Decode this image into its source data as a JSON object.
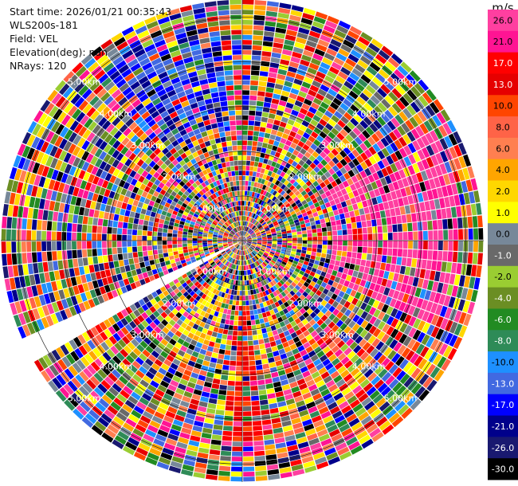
{
  "header": {
    "start_time": "Start time: 2026/01/21 00:35:43",
    "instrument": "WLS200s-181",
    "field": "Field: VEL",
    "elevation": "Elevation(deg): nan",
    "nrays": "NRays: 120"
  },
  "colorbar": {
    "unit": "m/s",
    "levels": [
      {
        "label": "26.0",
        "color": "#ff3fa0"
      },
      {
        "label": "21.0",
        "color": "#ff1493"
      },
      {
        "label": "17.0",
        "color": "#ff0000"
      },
      {
        "label": "13.0",
        "color": "#e60000"
      },
      {
        "label": "10.0",
        "color": "#ff4500"
      },
      {
        "label": "8.0",
        "color": "#ff6347"
      },
      {
        "label": "6.0",
        "color": "#ff7f50"
      },
      {
        "label": "4.0",
        "color": "#ffa500"
      },
      {
        "label": "2.0",
        "color": "#ffd700"
      },
      {
        "label": "1.0",
        "color": "#ffff00"
      },
      {
        "label": "0.0",
        "color": "#778899"
      },
      {
        "label": "-1.0",
        "color": "#696969"
      },
      {
        "label": "-2.0",
        "color": "#9acd32"
      },
      {
        "label": "-4.0",
        "color": "#6b8e23"
      },
      {
        "label": "-6.0",
        "color": "#228b22"
      },
      {
        "label": "-8.0",
        "color": "#2e8b57"
      },
      {
        "label": "-10.0",
        "color": "#1e90ff"
      },
      {
        "label": "-13.0",
        "color": "#4169e1"
      },
      {
        "label": "-17.0",
        "color": "#0000ff"
      },
      {
        "label": "-21.0",
        "color": "#00008b"
      },
      {
        "label": "-26.0",
        "color": "#191970"
      },
      {
        "label": "-30.0",
        "color": "#000000"
      }
    ]
  },
  "chart_data": {
    "type": "heatmap",
    "projection": "polar-ppi",
    "field": "VEL",
    "units": "m/s",
    "nrays": 120,
    "range_rings_km": [
      1.0,
      2.0,
      3.0,
      4.0,
      5.0
    ],
    "ring_labels": [
      "1.00km",
      "2.00km",
      "3.00km",
      "4.00km",
      "5.00km"
    ],
    "max_range_km": 5.4,
    "value_range": [
      -30.0,
      30.0
    ],
    "gap_azimuth_deg": [
      240,
      245
    ],
    "notable_regions": [
      {
        "azimuth_deg": [
          320,
          355
        ],
        "range_km": [
          2.5,
          5.0
        ],
        "level": "-17.0"
      },
      {
        "azimuth_deg": [
          60,
          115
        ],
        "range_km": [
          2.0,
          5.0
        ],
        "level": "26.0"
      },
      {
        "azimuth_deg": [
          175,
          185
        ],
        "range_km": [
          1.5,
          4.5
        ],
        "level": "13.0"
      },
      {
        "azimuth_deg": [
          195,
          215
        ],
        "range_km": [
          1.0,
          2.5
        ],
        "level": "2.0"
      }
    ]
  }
}
